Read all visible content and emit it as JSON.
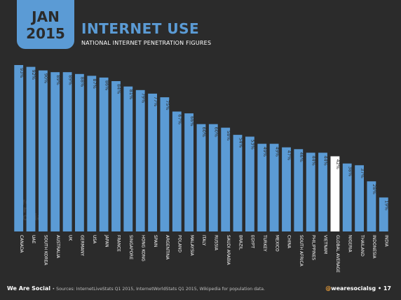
{
  "header": {
    "month": "JAN",
    "year": "2015",
    "title": "INTERNET USE",
    "subtitle": "NATIONAL INTERNET PENETRATION FIGURES"
  },
  "watermark": [
    "we",
    "are",
    "social"
  ],
  "footer": {
    "brand": "We Are Social",
    "source": "• Sources: InternetLiveStats Q1 2015, InternetWorldStats Q1 2015, Wikipedia for population data.",
    "handle_at": "@",
    "handle": "wearesocialsg",
    "page": "• 17"
  },
  "colors": {
    "bar": "#5b9bd5",
    "highlight": "#ffffff",
    "background": "#2b2b2b"
  },
  "chart_data": {
    "type": "bar",
    "categories": [
      "CANADA",
      "UAE",
      "SOUTH KOREA",
      "AUSTRALIA",
      "UK",
      "GERMANY",
      "USA",
      "JAPAN",
      "FRANCE",
      "SINGAPORE",
      "HONG KONG",
      "SPAIN",
      "ARGENTINA",
      "POLAND",
      "MALAYSIA",
      "ITALY",
      "RUSSIA",
      "SAUDI ARABIA",
      "BRAZIL",
      "EGYPT",
      "TURKEY",
      "MEXICO",
      "CHINA",
      "SOUTH AFRICA",
      "PHILIPPINES",
      "VIETNAM",
      "GLOBAL AVERAGE",
      "NIGERIA",
      "THAILAND",
      "INDONESIA",
      "INDIA"
    ],
    "values": [
      93,
      92,
      90,
      89,
      89,
      88,
      87,
      86,
      84,
      81,
      79,
      77,
      75,
      67,
      66,
      60,
      60,
      58,
      54,
      53,
      49,
      49,
      47,
      46,
      44,
      44,
      42,
      38,
      37,
      28,
      19
    ],
    "labels": [
      "93%",
      "92%",
      "90%",
      "89%",
      "89%",
      "88%",
      "87%",
      "86%",
      "84%",
      "81%",
      "79%",
      "77%",
      "75%",
      "67%",
      "66%",
      "60%",
      "60%",
      "58%",
      "54%",
      "53%",
      "49%",
      "49%",
      "47%",
      "46%",
      "44%",
      "44%",
      "42%",
      "38%",
      "37%",
      "28%",
      "19%"
    ],
    "highlight": "GLOBAL AVERAGE",
    "ylim": [
      0,
      100
    ]
  }
}
